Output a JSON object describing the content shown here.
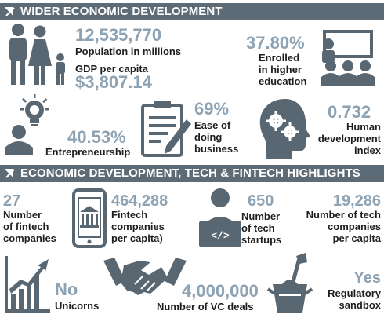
{
  "sections": [
    {
      "title": "WIDER ECONOMIC DEVELOPMENT"
    },
    {
      "title": "ECONOMIC DEVELOPMENT, TECH & FINTECH HIGHLIGHTS"
    }
  ],
  "metrics": {
    "population": {
      "value": "12,535,770",
      "label": "Population in millions",
      "icon": "family-icon"
    },
    "gdp": {
      "label": "GDP per capita",
      "value": "$3,807.14"
    },
    "education": {
      "value": "37.80%",
      "label_lines": [
        "Enrolled",
        "in higher",
        "education"
      ],
      "icon": "classroom-icon"
    },
    "entrepreneurship": {
      "value": "40.53%",
      "label": "Entrepreneurship",
      "icon": "idea-person-icon"
    },
    "ease": {
      "value": "69%",
      "label_lines": [
        "Ease of",
        "doing",
        "business"
      ],
      "icon": "clipboard-icon"
    },
    "hdi": {
      "value": "0.732",
      "label_lines": [
        "Human",
        "development",
        "index"
      ],
      "icon": "head-gears-icon"
    },
    "fintech": {
      "value": "27",
      "label_lines": [
        "Number",
        "of fintech",
        "companies"
      ]
    },
    "fintech_pc": {
      "value": "464,288",
      "label_lines": [
        "Fintech",
        "companies",
        "per capita)"
      ],
      "icon": "mobile-bank-icon"
    },
    "startups": {
      "value": "650",
      "label_lines": [
        "Number",
        "of tech",
        "startups"
      ],
      "icon": "coder-icon"
    },
    "tech_pc": {
      "value": "19,286",
      "label_lines": [
        "Number of tech",
        "companies",
        "per capita"
      ]
    },
    "unicorns": {
      "value": "No",
      "label": "Unicorns",
      "icon": "growth-chart-icon"
    },
    "vc": {
      "value": "4,000,000",
      "label": "Number of VC deals",
      "icon": "handshake-icon"
    },
    "sandbox": {
      "value": "Yes",
      "label_lines": [
        "Regulatory",
        "sandbox"
      ],
      "icon": "sandbox-bucket-icon"
    }
  }
}
